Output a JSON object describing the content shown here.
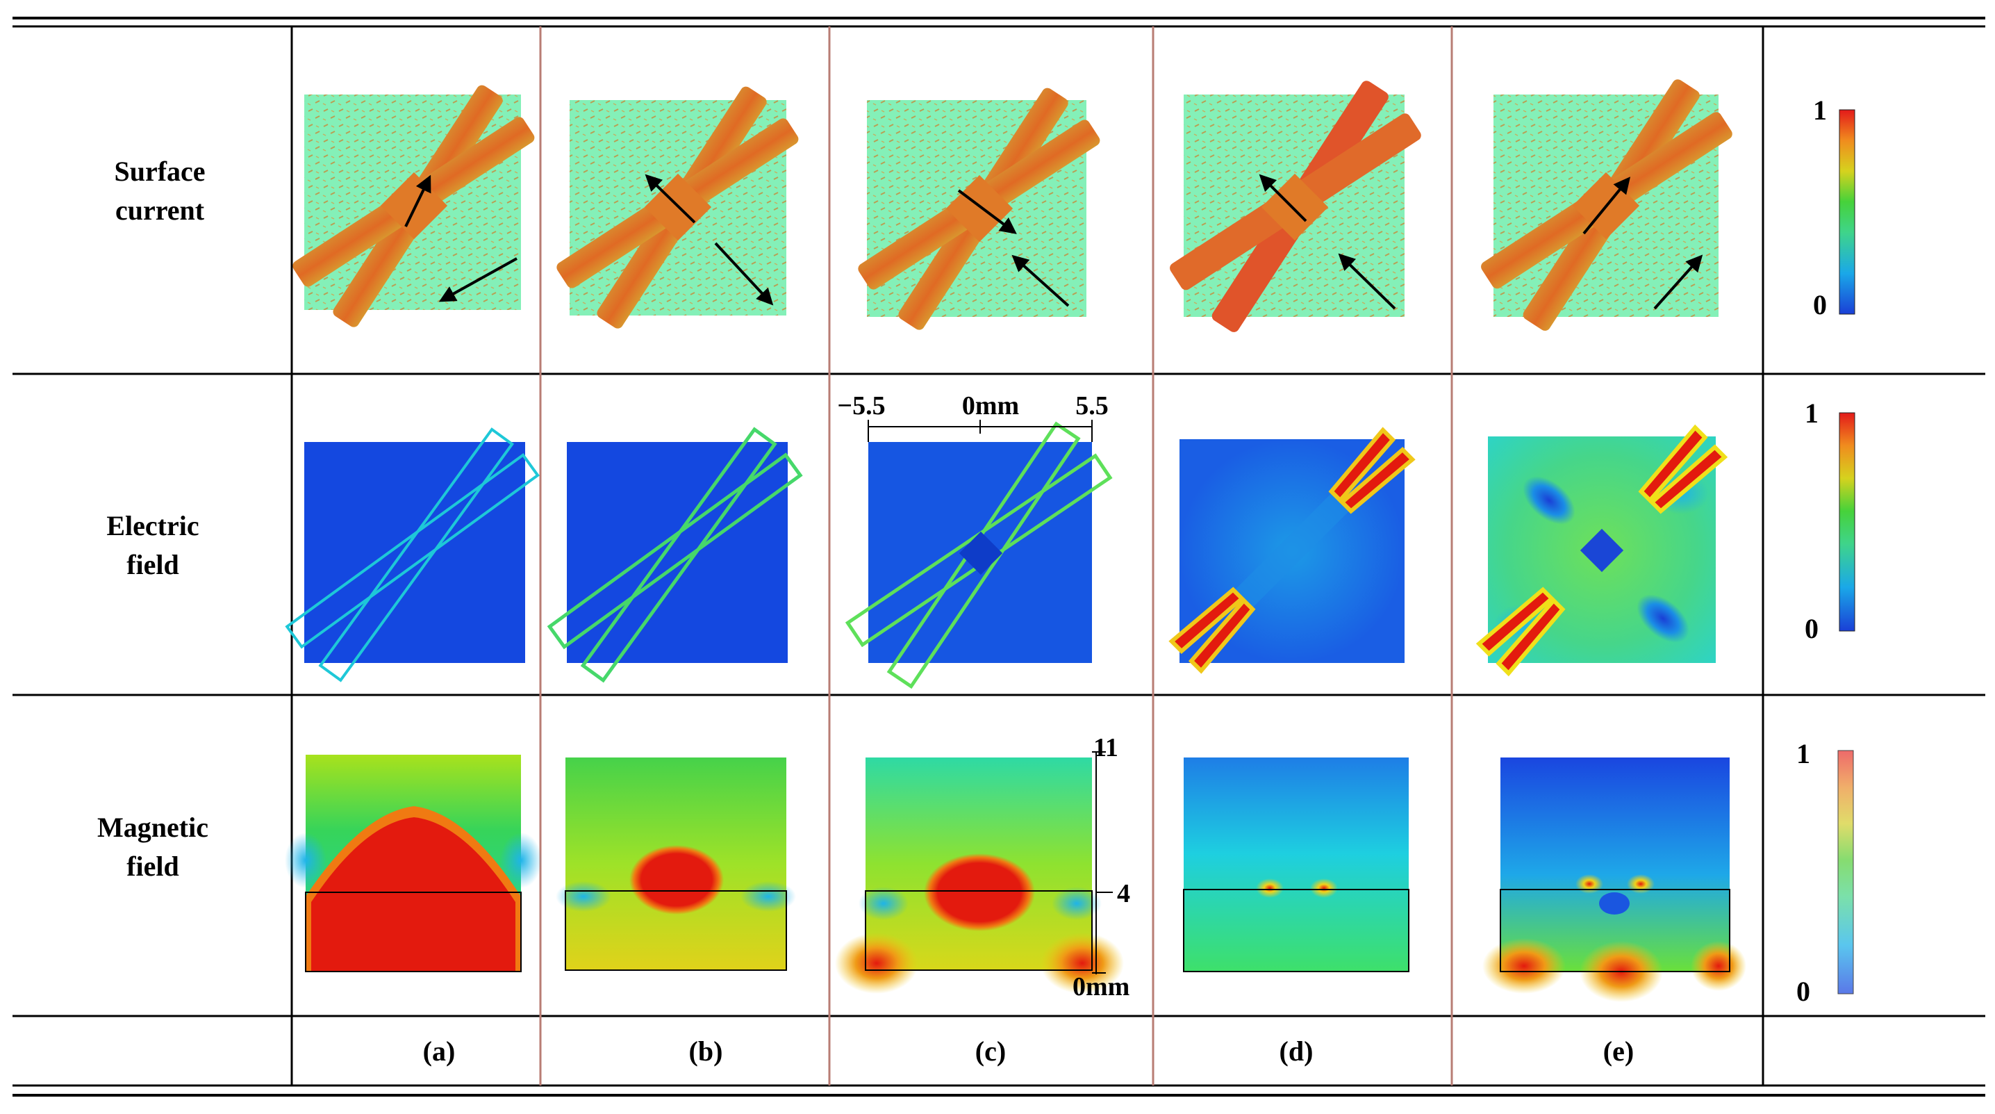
{
  "rows": [
    {
      "label_line1": "Surface",
      "label_line2": "current"
    },
    {
      "label_line1": "Electric",
      "label_line2": "field"
    },
    {
      "label_line1": "Magnetic",
      "label_line2": "field"
    }
  ],
  "columns": [
    "(a)",
    "(b)",
    "(c)",
    "(d)",
    "(e)"
  ],
  "colorbar": {
    "max_label": "1",
    "min_label": "0"
  },
  "electric_axis": {
    "left": "−5.5",
    "center": "0mm",
    "right": "5.5"
  },
  "magnetic_axis": {
    "top": "11",
    "mid": "4",
    "bottom": "0mm"
  },
  "colors": {
    "dielectric_green": "#84f0b8",
    "current_orange": "#e4932f",
    "field_blue": "#1448e0",
    "hot_red": "#e31a0e",
    "grid_line": "#000000",
    "divider_line": "#b87d74"
  }
}
